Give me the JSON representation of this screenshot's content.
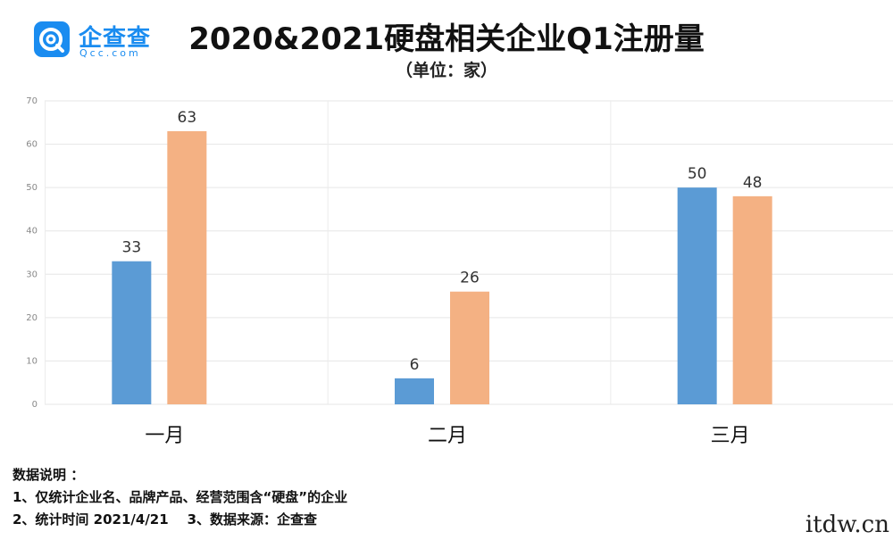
{
  "logo": {
    "name": "企查查",
    "sub": "Qcc.com"
  },
  "title": "2020&2021硬盘相关企业Q1注册量",
  "subtitle": "（单位：家）",
  "chart_data": {
    "type": "bar",
    "categories": [
      "一月",
      "二月",
      "三月"
    ],
    "series": [
      {
        "values": [
          33,
          6,
          50
        ],
        "color": "#5b9bd5"
      },
      {
        "values": [
          63,
          26,
          48
        ],
        "color": "#f4b183"
      }
    ],
    "ylim": [
      0,
      70
    ],
    "yticks": [
      0,
      10,
      20,
      30,
      40,
      50,
      60,
      70
    ],
    "grid": true,
    "legend": "none"
  },
  "notes": {
    "heading": "数据说明 ：",
    "line1": "1、仅统计企业名、品牌产品、经营范围含“硬盘”的企业",
    "line2": "2、统计时间 2021/4/21    3、数据来源：企查查"
  },
  "watermark": "itdw.cn"
}
